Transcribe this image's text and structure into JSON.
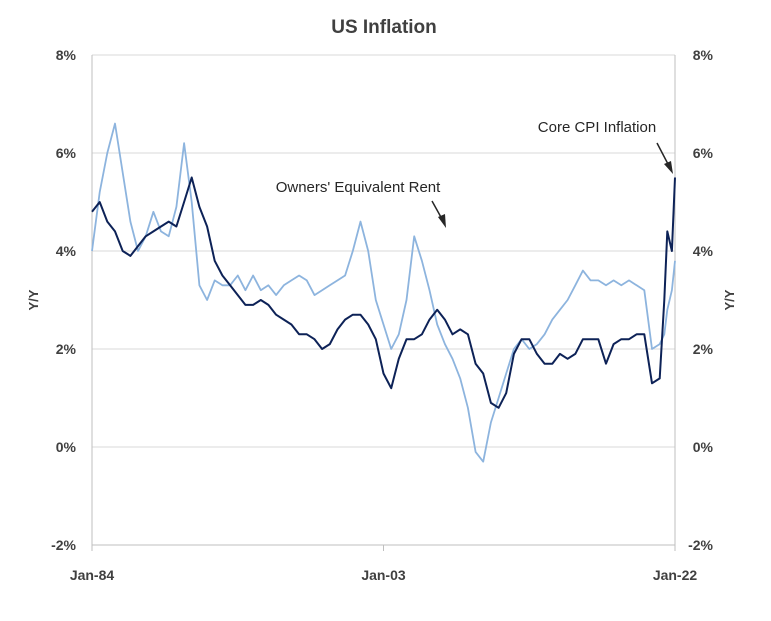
{
  "chart_data": {
    "type": "line",
    "title": "US Inflation",
    "ylabel_left": "Y/Y",
    "ylabel_right": "Y/Y",
    "ylim": [
      -2,
      8
    ],
    "y_ticks": [
      "-2%",
      "0%",
      "2%",
      "4%",
      "6%",
      "8%"
    ],
    "x_ticks": [
      "Jan-84",
      "Jan-03",
      "Jan-22"
    ],
    "xlim": [
      "1984-01",
      "2022-01"
    ],
    "grid": "horizontal",
    "colors": {
      "core_cpi": "#0d2257",
      "oer": "#8db4de"
    },
    "annotations": [
      {
        "text": "Core CPI Inflation",
        "points_to": [
          "2022-01",
          5.5
        ]
      },
      {
        "text": "Owners' Equivalent Rent",
        "points_to": [
          "2004-04",
          4.3
        ]
      }
    ],
    "series": [
      {
        "name": "Core CPI Inflation",
        "x": [
          1984.0,
          1984.5,
          1985.0,
          1985.5,
          1986.0,
          1986.5,
          1987.0,
          1987.5,
          1988.0,
          1988.5,
          1989.0,
          1989.5,
          1990.0,
          1990.5,
          1991.0,
          1991.5,
          1992.0,
          1992.5,
          1993.0,
          1993.5,
          1994.0,
          1994.5,
          1995.0,
          1995.5,
          1996.0,
          1996.5,
          1997.0,
          1997.5,
          1998.0,
          1998.5,
          1999.0,
          1999.5,
          2000.0,
          2000.5,
          2001.0,
          2001.5,
          2002.0,
          2002.5,
          2003.0,
          2003.5,
          2004.0,
          2004.5,
          2005.0,
          2005.5,
          2006.0,
          2006.5,
          2007.0,
          2007.5,
          2008.0,
          2008.5,
          2009.0,
          2009.5,
          2010.0,
          2010.5,
          2011.0,
          2011.5,
          2012.0,
          2012.5,
          2013.0,
          2013.5,
          2014.0,
          2014.5,
          2015.0,
          2015.5,
          2016.0,
          2016.5,
          2017.0,
          2017.5,
          2018.0,
          2018.5,
          2019.0,
          2019.5,
          2020.0,
          2020.5,
          2021.0,
          2021.3,
          2021.5,
          2021.8,
          2022.0
        ],
        "values": [
          4.8,
          5.0,
          4.6,
          4.4,
          4.0,
          3.9,
          4.1,
          4.3,
          4.4,
          4.5,
          4.6,
          4.5,
          5.0,
          5.5,
          4.9,
          4.5,
          3.8,
          3.5,
          3.3,
          3.1,
          2.9,
          2.9,
          3.0,
          2.9,
          2.7,
          2.6,
          2.5,
          2.3,
          2.3,
          2.2,
          2.0,
          2.1,
          2.4,
          2.6,
          2.7,
          2.7,
          2.5,
          2.2,
          1.5,
          1.2,
          1.8,
          2.2,
          2.2,
          2.3,
          2.6,
          2.8,
          2.6,
          2.3,
          2.4,
          2.3,
          1.7,
          1.5,
          0.9,
          0.8,
          1.1,
          1.9,
          2.2,
          2.2,
          1.9,
          1.7,
          1.7,
          1.9,
          1.8,
          1.9,
          2.2,
          2.2,
          2.2,
          1.7,
          2.1,
          2.2,
          2.2,
          2.3,
          2.3,
          1.3,
          1.4,
          3.0,
          4.4,
          4.0,
          5.5
        ]
      },
      {
        "name": "Owners' Equivalent Rent",
        "x": [
          1984.0,
          1984.5,
          1985.0,
          1985.5,
          1986.0,
          1986.5,
          1987.0,
          1987.5,
          1988.0,
          1988.5,
          1989.0,
          1989.5,
          1990.0,
          1990.5,
          1991.0,
          1991.5,
          1992.0,
          1992.5,
          1993.0,
          1993.5,
          1994.0,
          1994.5,
          1995.0,
          1995.5,
          1996.0,
          1996.5,
          1997.0,
          1997.5,
          1998.0,
          1998.5,
          1999.0,
          1999.5,
          2000.0,
          2000.5,
          2001.0,
          2001.5,
          2002.0,
          2002.5,
          2003.0,
          2003.5,
          2004.0,
          2004.5,
          2005.0,
          2005.5,
          2006.0,
          2006.5,
          2007.0,
          2007.5,
          2008.0,
          2008.5,
          2009.0,
          2009.5,
          2010.0,
          2010.5,
          2011.0,
          2011.5,
          2012.0,
          2012.5,
          2013.0,
          2013.5,
          2014.0,
          2014.5,
          2015.0,
          2015.5,
          2016.0,
          2016.5,
          2017.0,
          2017.5,
          2018.0,
          2018.5,
          2019.0,
          2019.5,
          2020.0,
          2020.5,
          2021.0,
          2021.3,
          2021.5,
          2021.8,
          2022.0
        ],
        "values": [
          4.0,
          5.2,
          6.0,
          6.6,
          5.6,
          4.6,
          4.0,
          4.3,
          4.8,
          4.4,
          4.3,
          4.9,
          6.2,
          5.0,
          3.3,
          3.0,
          3.4,
          3.3,
          3.3,
          3.5,
          3.2,
          3.5,
          3.2,
          3.3,
          3.1,
          3.3,
          3.4,
          3.5,
          3.4,
          3.1,
          3.2,
          3.3,
          3.4,
          3.5,
          4.0,
          4.6,
          4.0,
          3.0,
          2.5,
          2.0,
          2.3,
          3.0,
          4.3,
          3.8,
          3.2,
          2.5,
          2.1,
          1.8,
          1.4,
          0.8,
          -0.1,
          -0.3,
          0.5,
          1.0,
          1.5,
          2.0,
          2.2,
          2.0,
          2.1,
          2.3,
          2.6,
          2.8,
          3.0,
          3.3,
          3.6,
          3.4,
          3.4,
          3.3,
          3.4,
          3.3,
          3.4,
          3.3,
          3.2,
          2.0,
          2.1,
          2.3,
          2.8,
          3.2,
          3.8
        ]
      }
    ]
  }
}
